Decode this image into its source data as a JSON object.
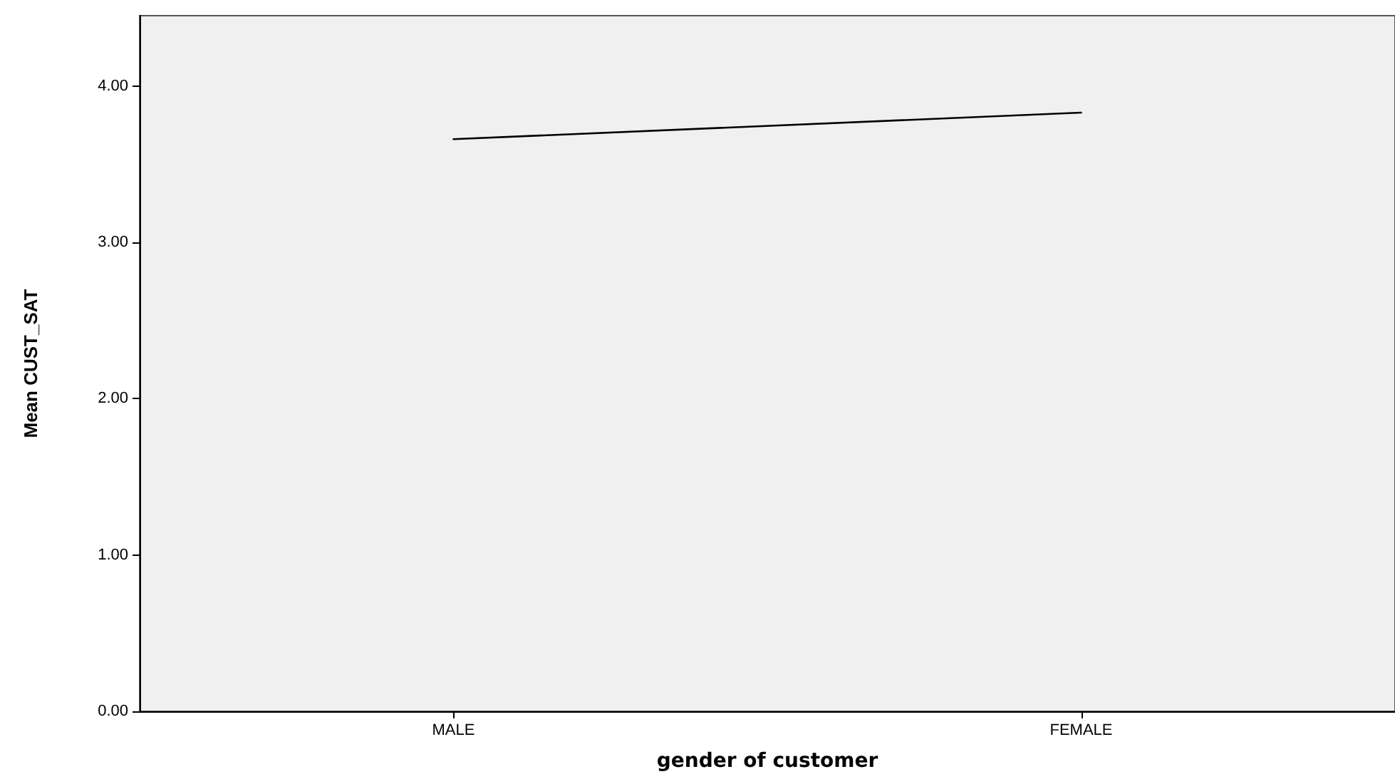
{
  "chart_data": {
    "type": "line",
    "xlabel": "gender of customer",
    "ylabel": "Mean CUST_SAT",
    "categories": [
      "MALE",
      "FEMALE"
    ],
    "series": [
      {
        "color": "#000000",
        "values": [
          3.66,
          3.83
        ]
      }
    ],
    "ylim": [
      0,
      4.45
    ],
    "yticks": [
      {
        "value": 0,
        "label": "0.00"
      },
      {
        "value": 1,
        "label": "1.00"
      },
      {
        "value": 2,
        "label": "2.00"
      },
      {
        "value": 3,
        "label": "3.00"
      },
      {
        "value": 4,
        "label": "4.00"
      }
    ],
    "grid": false,
    "marker": "none",
    "line_style": "solid"
  }
}
